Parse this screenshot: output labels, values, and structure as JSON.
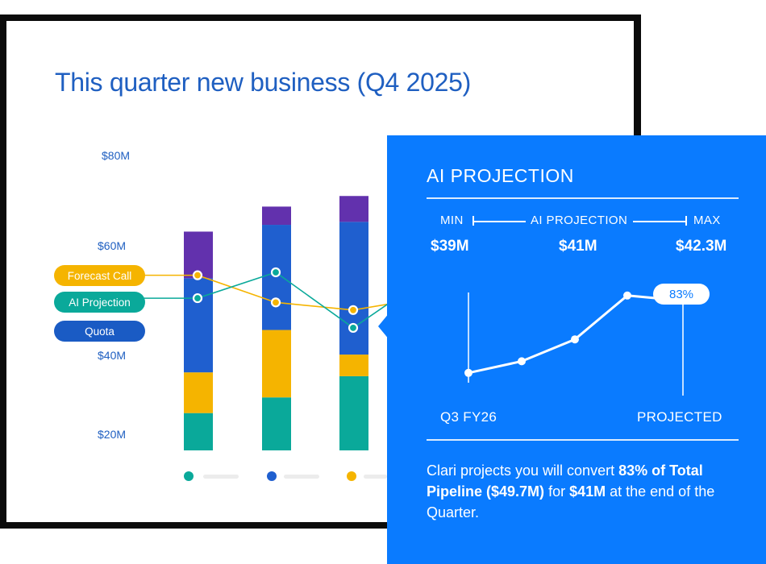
{
  "chart_data": {
    "type": "bar",
    "title": "This quarter new business (Q4 2025)",
    "y_ticks": [
      "$80M",
      "$60M",
      "$40M",
      "$20M"
    ],
    "ylim": [
      10,
      90
    ],
    "stack_series_colors": [
      "#0aa99a",
      "#f5b400",
      "#1f5fcf",
      "#6231ad"
    ],
    "bars": [
      {
        "segments": [
          8.8,
          9.6,
          22.2,
          11.0
        ]
      },
      {
        "segments": [
          12.5,
          15.9,
          24.8,
          4.3
        ]
      },
      {
        "segments": [
          17.5,
          5.1,
          31.3,
          6.1
        ]
      }
    ],
    "series": [
      {
        "name": "Forecast Call",
        "color": "#f5b400",
        "values": [
          51.3,
          44.9,
          43.1,
          45.1
        ]
      },
      {
        "name": "AI Projection",
        "color": "#0aa99a",
        "values": [
          45.9,
          52.0,
          38.9,
          47.0
        ]
      }
    ],
    "legend_pills": [
      {
        "label": "Forecast Call",
        "color": "#f5b400"
      },
      {
        "label": "AI Projection",
        "color": "#0aa99a"
      },
      {
        "label": "Quota",
        "color": "#1a5bc4"
      }
    ],
    "background_bars_fraction": [
      0.55,
      0.9
    ],
    "bottom_legend_dot_colors": [
      "#0aa99a",
      "#1f5fcf",
      "#f5b400"
    ]
  },
  "panel": {
    "title": "AI PROJECTION",
    "range": {
      "min_label": "MIN",
      "mid_label": "AI PROJECTION",
      "max_label": "MAX",
      "min_value": "$39M",
      "mid_value": "$41M",
      "max_value": "$42.3M"
    },
    "trend": {
      "values": [
        0.27,
        0.36,
        0.53,
        0.87,
        0.83
      ],
      "badge": "83%",
      "x_start_label": "Q3 FY26",
      "x_end_label": "PROJECTED"
    },
    "summary": {
      "text1": "Clari projects you will convert ",
      "bold1": "83% of Total Pipeline ($49.7M)",
      "text2": " for ",
      "bold2": "$41M",
      "text3": " at the end of the Quarter."
    }
  }
}
